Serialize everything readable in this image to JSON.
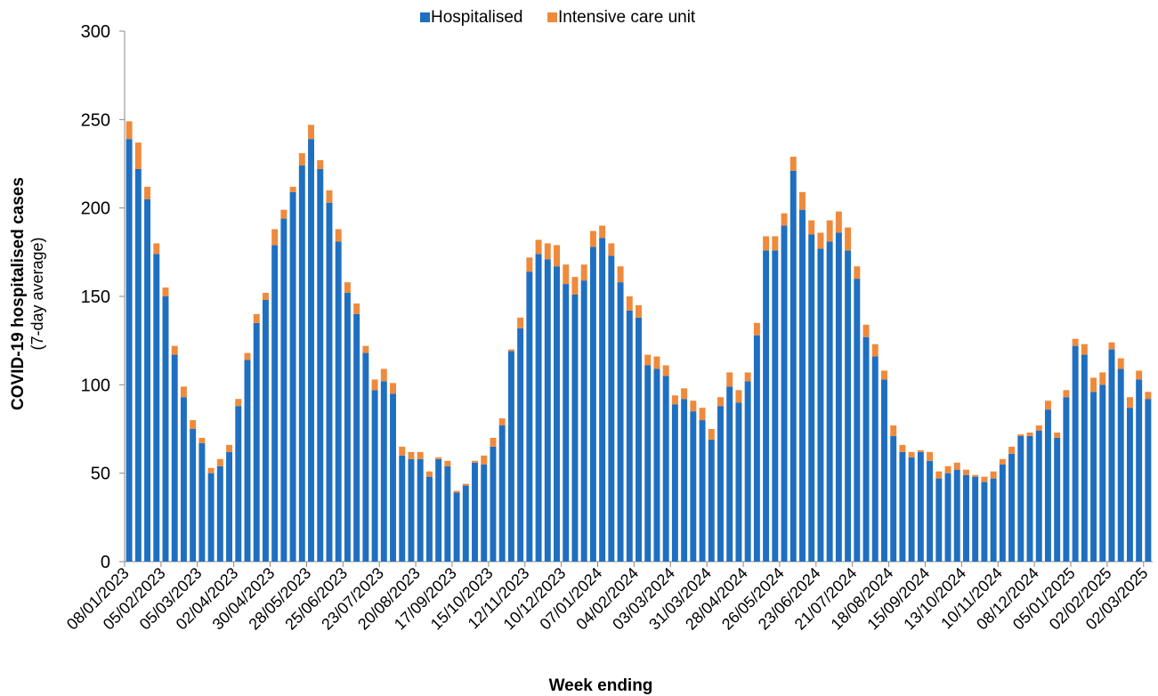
{
  "chart_data": {
    "type": "stacked_bar",
    "y_label": "COVID-19 hospitalised  cases",
    "y_sublabel": "(7-day average)",
    "x_label": "Week ending",
    "ylim": [
      0,
      300
    ],
    "yticks": [
      0,
      50,
      100,
      150,
      200,
      250,
      300
    ],
    "legend_position": "top",
    "categories": [
      "08/01/2023",
      null,
      null,
      null,
      "05/02/2023",
      null,
      null,
      null,
      "05/03/2023",
      null,
      null,
      null,
      "02/04/2023",
      null,
      null,
      null,
      "30/04/2023",
      null,
      null,
      null,
      "28/05/2023",
      null,
      null,
      null,
      "25/06/2023",
      null,
      null,
      null,
      "23/07/2023",
      null,
      null,
      null,
      "20/08/2023",
      null,
      null,
      null,
      "17/09/2023",
      null,
      null,
      null,
      "15/10/2023",
      null,
      null,
      null,
      "12/11/2023",
      null,
      null,
      null,
      "10/12/2023",
      null,
      null,
      null,
      "07/01/2024",
      null,
      null,
      null,
      "04/02/2024",
      null,
      null,
      null,
      "03/03/2024",
      null,
      null,
      null,
      "31/03/2024",
      null,
      null,
      null,
      "28/04/2024",
      null,
      null,
      null,
      "26/05/2024",
      null,
      null,
      null,
      "23/06/2024",
      null,
      null,
      null,
      "21/07/2024",
      null,
      null,
      null,
      "18/08/2024",
      null,
      null,
      null,
      "15/09/2024",
      null,
      null,
      null,
      "13/10/2024",
      null,
      null,
      null,
      "10/11/2024",
      null,
      null,
      null,
      "08/12/2024",
      null,
      null,
      null,
      "05/01/2025",
      null,
      null,
      null,
      "02/02/2025",
      null,
      null,
      null,
      "02/03/2025"
    ],
    "series": [
      {
        "name": "Hospitalised",
        "color": "#1f6fc1",
        "values": [
          239,
          222,
          205,
          174,
          150,
          117,
          93,
          75,
          67,
          50,
          54,
          62,
          88,
          114,
          135,
          148,
          179,
          194,
          209,
          224,
          239,
          222,
          203,
          181,
          152,
          140,
          118,
          97,
          102,
          95,
          60,
          58,
          58,
          48,
          58,
          54,
          39,
          43,
          56,
          55,
          65,
          77,
          119,
          132,
          164,
          174,
          171,
          167,
          157,
          151,
          159,
          178,
          183,
          173,
          158,
          142,
          138,
          111,
          109,
          105,
          89,
          92,
          85,
          80,
          69,
          88,
          99,
          90,
          102,
          128,
          176,
          176,
          190,
          221,
          199,
          185,
          177,
          181,
          186,
          176,
          160,
          127,
          116,
          103,
          71,
          62,
          59,
          62,
          57,
          47,
          50,
          52,
          49,
          48,
          45,
          47,
          55,
          61,
          71,
          71,
          74,
          86,
          70,
          93,
          122,
          117,
          96,
          100,
          120,
          109,
          87,
          103,
          92
        ]
      },
      {
        "name": "Intensive care unit",
        "color": "#ef8a3c",
        "values": [
          10,
          15,
          7,
          6,
          5,
          5,
          6,
          5,
          3,
          3,
          4,
          4,
          4,
          4,
          5,
          4,
          9,
          5,
          3,
          7,
          8,
          5,
          7,
          7,
          6,
          6,
          4,
          6,
          7,
          6,
          5,
          4,
          4,
          3,
          1,
          3,
          1,
          1,
          1,
          5,
          5,
          4,
          1,
          6,
          8,
          8,
          9,
          12,
          11,
          10,
          9,
          9,
          7,
          7,
          9,
          8,
          7,
          6,
          7,
          6,
          5,
          6,
          6,
          7,
          6,
          5,
          8,
          7,
          5,
          7,
          8,
          8,
          7,
          8,
          10,
          8,
          9,
          12,
          12,
          13,
          7,
          7,
          7,
          5,
          6,
          4,
          3,
          1,
          5,
          4,
          4,
          4,
          3,
          1,
          3,
          4,
          3,
          4,
          1,
          2,
          3,
          5,
          3,
          4,
          4,
          6,
          8,
          7,
          4,
          6,
          6,
          5,
          4
        ]
      }
    ]
  }
}
